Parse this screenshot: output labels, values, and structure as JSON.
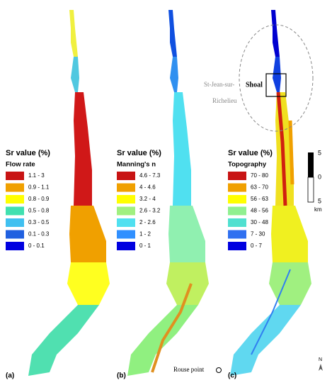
{
  "panels": [
    {
      "label": "(a)",
      "legend": {
        "title": "Sr value (%)",
        "subtitle": "Flow rate",
        "items": [
          {
            "label": "1.1 - 3",
            "color": "#c81414"
          },
          {
            "label": "0.9 - 1.1",
            "color": "#f0a000"
          },
          {
            "label": "0.8 - 0.9",
            "color": "#ffff00"
          },
          {
            "label": "0.5 - 0.8",
            "color": "#40e0b0"
          },
          {
            "label": "0.3 - 0.5",
            "color": "#40c0f0"
          },
          {
            "label": "0.1 - 0.3",
            "color": "#2060e0"
          },
          {
            "label": "0 - 0.1",
            "color": "#0000e0"
          }
        ]
      }
    },
    {
      "label": "(b)",
      "legend": {
        "title": "Sr value (%)",
        "subtitle": "Manning's n",
        "items": [
          {
            "label": "4.6 - 7.3",
            "color": "#c81414"
          },
          {
            "label": "4 - 4.6",
            "color": "#f0a000"
          },
          {
            "label": "3.2 - 4",
            "color": "#ffff00"
          },
          {
            "label": "2.6 - 3.2",
            "color": "#a0f080"
          },
          {
            "label": "2 - 2.6",
            "color": "#50e0f0"
          },
          {
            "label": "1 - 2",
            "color": "#3090ff"
          },
          {
            "label": "0 - 1",
            "color": "#0000e0"
          }
        ]
      }
    },
    {
      "label": "(c)",
      "legend": {
        "title": "Sr value (%)",
        "subtitle": "Topography",
        "items": [
          {
            "label": "70 - 80",
            "color": "#c81414"
          },
          {
            "label": "63 - 70",
            "color": "#f0a000"
          },
          {
            "label": "56 - 63",
            "color": "#ffff00"
          },
          {
            "label": "48 - 56",
            "color": "#90f090"
          },
          {
            "label": "30 - 48",
            "color": "#50e0d0"
          },
          {
            "label": "7 - 30",
            "color": "#3070f0"
          },
          {
            "label": "0 - 7",
            "color": "#0000e0"
          }
        ]
      }
    }
  ],
  "annotations": {
    "town_line1": "St-Jean-sur-",
    "town_line2": "Richelieu",
    "shoal": "Shoal",
    "rouse_point": "Rouse point"
  },
  "scale_bar": {
    "top": "5",
    "middle": "0",
    "bottom": "5",
    "unit": "km"
  },
  "north": "N"
}
